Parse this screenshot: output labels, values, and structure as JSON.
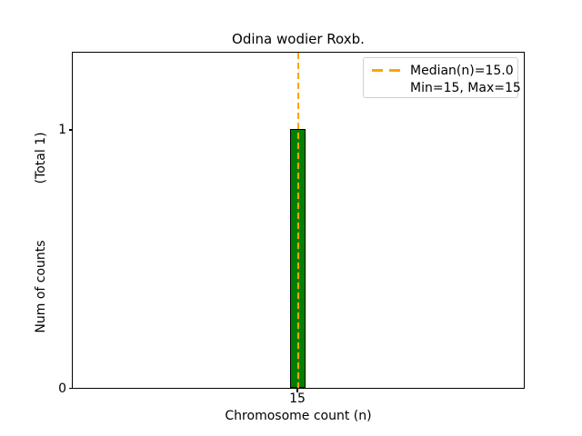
{
  "title": "Odina wodier Roxb.",
  "axes": {
    "x_label": "Chromosome count (n)",
    "y_label_main": "Num of counts",
    "y_label_total": "(Total 1)",
    "x_ticks": [
      {
        "label": "15"
      }
    ],
    "y_ticks": [
      {
        "label": "1"
      },
      {
        "label": "0"
      }
    ]
  },
  "legend": {
    "median_label": "Median(n)=15.0",
    "minmax_label": "Min=15, Max=15"
  },
  "colors": {
    "bar_fill": "#008000",
    "bar_edge": "#000000",
    "median_line": "#FFA500",
    "axis": "#000000",
    "legend_border": "#d0d0d0",
    "background": "#ffffff"
  },
  "chart_data": {
    "type": "bar",
    "title": "Odina wodier Roxb.",
    "xlabel": "Chromosome count (n)",
    "ylabel": "Num of counts    (Total 1)",
    "categories": [
      15
    ],
    "values": [
      1
    ],
    "x_ticks": [
      15
    ],
    "y_ticks": [
      0,
      1
    ],
    "ylim": [
      0,
      1.3
    ],
    "grid": false,
    "bar_color": "#008000",
    "bar_edge_color": "#000000",
    "median_line": {
      "value": 15.0,
      "color": "#FFA500",
      "style": "dashed",
      "orientation": "vertical"
    },
    "stats": {
      "median": 15.0,
      "min": 15,
      "max": 15,
      "total_counts": 1
    },
    "legend": {
      "position": "upper right",
      "entries": [
        "Median(n)=15.0",
        "Min=15, Max=15"
      ]
    }
  }
}
